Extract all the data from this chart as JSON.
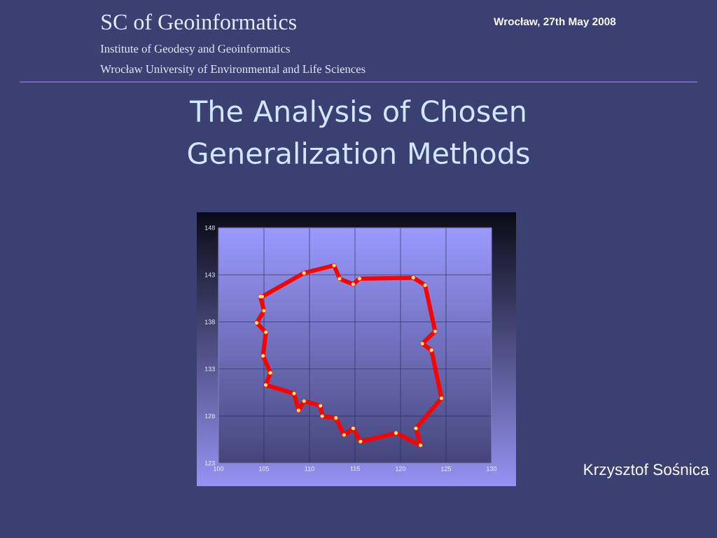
{
  "chart_data": {
    "type": "line",
    "title": "The Analysis of Chosen Generalization Methods",
    "annotations": [
      "SC of Geoinformatics",
      "Institute of Geodesy and Geoinformatics",
      "Wrocław University of Environmental and Life Sciences",
      "Wrocław,  27th May 2008",
      "Krzysztof Sośnica"
    ],
    "x": [
      104.8,
      109.4,
      112.7,
      113.3,
      114.8,
      115.5,
      121.4,
      122.7,
      123.8,
      122.4,
      123.4,
      124.5,
      121.7,
      122.2,
      119.5,
      115.6,
      114.8,
      113.8,
      112.9,
      111.4,
      111.2,
      109.4,
      108.8,
      108.3,
      105.2,
      105.7,
      104.9,
      105.2,
      104.2,
      105.0,
      104.6
    ],
    "series": [
      {
        "color": "#ff0000",
        "values": [
          140.7,
          143.2,
          144.0,
          142.6,
          142.0,
          142.6,
          142.7,
          141.9,
          137.0,
          135.7,
          135.0,
          129.9,
          126.7,
          124.9,
          126.2,
          125.3,
          126.7,
          126.0,
          127.8,
          128.0,
          129.1,
          129.6,
          128.6,
          130.4,
          131.3,
          132.6,
          134.4,
          136.9,
          137.9,
          139.2,
          140.7
        ]
      }
    ],
    "xlim": [
      100,
      130
    ],
    "ylim": [
      123,
      148
    ],
    "xticks": [
      100,
      105,
      110,
      115,
      120,
      125,
      130
    ],
    "yticks": [
      123,
      128,
      133,
      138,
      143,
      148
    ],
    "grid": true,
    "marker": "circle",
    "line_style": "solid"
  }
}
